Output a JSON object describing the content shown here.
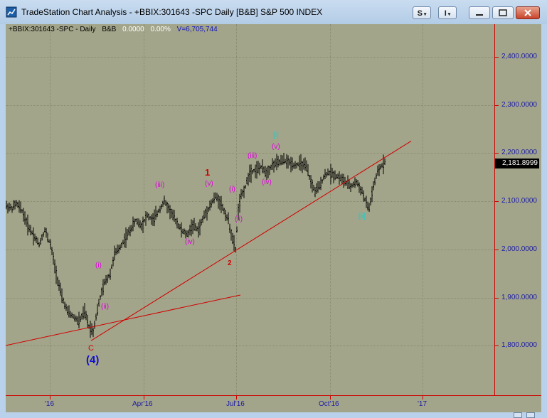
{
  "window": {
    "title": "TradeStation Chart Analysis - +BBIX:301643 -SPC Daily [B&B] S&P 500 INDEX",
    "toolbar_s": "S",
    "toolbar_i": "I"
  },
  "info_bar": {
    "symbol": "+BBIX:301643 -SPC - Daily",
    "style": "B&B",
    "change": "0.0000",
    "pct": "0.00%",
    "volume": "V=6,705,744"
  },
  "price_axis": {
    "ticks": [
      "2,400.0000",
      "2,300.0000",
      "2,200.0000",
      "2,100.0000",
      "2,000.0000",
      "1,900.0000",
      "1,800.0000"
    ],
    "last_price": "2,181.8999",
    "color": "#1a1aa8"
  },
  "time_axis": {
    "ticks": [
      "'16",
      "Apr'16",
      "Jul'16",
      "Oct'16",
      "'17"
    ]
  },
  "chart_data": {
    "type": "line",
    "title": "",
    "xlabel": "",
    "ylabel": "",
    "ylim": [
      1700,
      2470
    ],
    "last_price": 2181.8999,
    "close_path_description_points": [
      [
        0,
        2090
      ],
      [
        8,
        2085
      ],
      [
        14,
        2095
      ],
      [
        22,
        2080
      ],
      [
        30,
        2050
      ],
      [
        38,
        2030
      ],
      [
        46,
        2010
      ],
      [
        54,
        2040
      ],
      [
        62,
        2010
      ],
      [
        70,
        1950
      ],
      [
        78,
        1900
      ],
      [
        86,
        1870
      ],
      [
        94,
        1860
      ],
      [
        102,
        1850
      ],
      [
        110,
        1870
      ],
      [
        116,
        1840
      ],
      [
        122,
        1830
      ],
      [
        126,
        1860
      ],
      [
        132,
        1900
      ],
      [
        138,
        1930
      ],
      [
        146,
        1950
      ],
      [
        152,
        1990
      ],
      [
        158,
        2000
      ],
      [
        166,
        2020
      ],
      [
        174,
        2040
      ],
      [
        182,
        2060
      ],
      [
        190,
        2050
      ],
      [
        198,
        2070
      ],
      [
        206,
        2060
      ],
      [
        214,
        2080
      ],
      [
        222,
        2100
      ],
      [
        230,
        2080
      ],
      [
        238,
        2060
      ],
      [
        246,
        2040
      ],
      [
        254,
        2030
      ],
      [
        262,
        2050
      ],
      [
        270,
        2040
      ],
      [
        278,
        2070
      ],
      [
        286,
        2090
      ],
      [
        294,
        2110
      ],
      [
        300,
        2100
      ],
      [
        306,
        2080
      ],
      [
        312,
        2060
      ],
      [
        318,
        2020
      ],
      [
        322,
        2000
      ],
      [
        326,
        2080
      ],
      [
        330,
        2110
      ],
      [
        336,
        2130
      ],
      [
        342,
        2160
      ],
      [
        350,
        2165
      ],
      [
        358,
        2170
      ],
      [
        366,
        2160
      ],
      [
        374,
        2175
      ],
      [
        382,
        2180
      ],
      [
        390,
        2185
      ],
      [
        398,
        2180
      ],
      [
        406,
        2175
      ],
      [
        414,
        2178
      ],
      [
        422,
        2170
      ],
      [
        428,
        2140
      ],
      [
        434,
        2120
      ],
      [
        440,
        2130
      ],
      [
        446,
        2150
      ],
      [
        452,
        2160
      ],
      [
        460,
        2155
      ],
      [
        468,
        2150
      ],
      [
        476,
        2140
      ],
      [
        484,
        2130
      ],
      [
        492,
        2140
      ],
      [
        500,
        2120
      ],
      [
        506,
        2095
      ],
      [
        510,
        2085
      ],
      [
        516,
        2130
      ],
      [
        522,
        2160
      ],
      [
        528,
        2175
      ],
      [
        532,
        2182
      ]
    ],
    "trendlines": [
      {
        "from": [
          0,
          1800
        ],
        "to": [
          330,
          1905
        ]
      },
      {
        "from": [
          120,
          1810
        ],
        "to": [
          570,
          2225
        ]
      }
    ],
    "wave_labels": [
      {
        "text": "(4)",
        "color": "#1010d0"
      },
      {
        "text": "C",
        "color": "#d00000"
      },
      {
        "text": "(i)",
        "color": "#e000e0"
      },
      {
        "text": "(ii)",
        "color": "#e000e0"
      },
      {
        "text": "(iii)",
        "color": "#e000e0"
      },
      {
        "text": "(iv)",
        "color": "#e000e0"
      },
      {
        "text": "(v)",
        "color": "#e000e0"
      },
      {
        "text": "1",
        "color": "#d00000"
      },
      {
        "text": "2",
        "color": "#d00000"
      },
      {
        "text": "(i)",
        "color": "#e000e0"
      },
      {
        "text": "(ii)",
        "color": "#e000e0"
      },
      {
        "text": "(iii)",
        "color": "#e000e0"
      },
      {
        "text": "(iv)",
        "color": "#e000e0"
      },
      {
        "text": "(v)",
        "color": "#e000e0"
      },
      {
        "text": "[i]",
        "color": "#00d8d8"
      },
      {
        "text": "[ii]",
        "color": "#00d8d8"
      }
    ]
  },
  "colors": {
    "plot_bg": "#a3a58a",
    "trend_line": "#d00000",
    "bars": "#000000"
  }
}
